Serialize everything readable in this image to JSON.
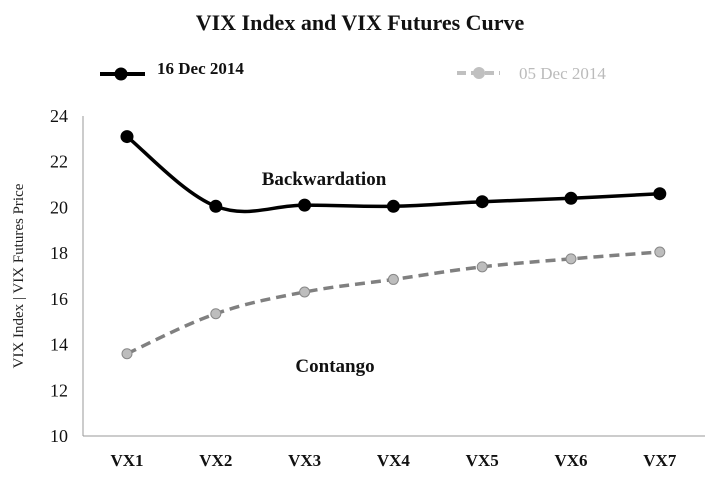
{
  "chart_data": {
    "type": "line",
    "title": "VIX Index and VIX Futures Curve",
    "xlabel": "",
    "ylabel": "VIX Index | VIX Futures Price",
    "categories": [
      "VX1",
      "VX2",
      "VX3",
      "VX4",
      "VX5",
      "VX6",
      "VX7"
    ],
    "ylim": [
      10,
      24
    ],
    "yticks": [
      "10",
      "12",
      "14",
      "16",
      "18",
      "20",
      "22",
      "24"
    ],
    "grid": false,
    "legend_position": "top",
    "series": [
      {
        "name": "16 Dec 2014",
        "color": "#000000",
        "style": "solid",
        "values": [
          23.1,
          20.05,
          20.1,
          20.05,
          20.25,
          20.4,
          20.6
        ]
      },
      {
        "name": "05 Dec 2014",
        "color": "#808080",
        "style": "dashed",
        "values": [
          13.6,
          15.35,
          16.3,
          16.85,
          17.4,
          17.75,
          18.05
        ]
      }
    ],
    "annotations": [
      "Backwardation",
      "Contango"
    ]
  }
}
